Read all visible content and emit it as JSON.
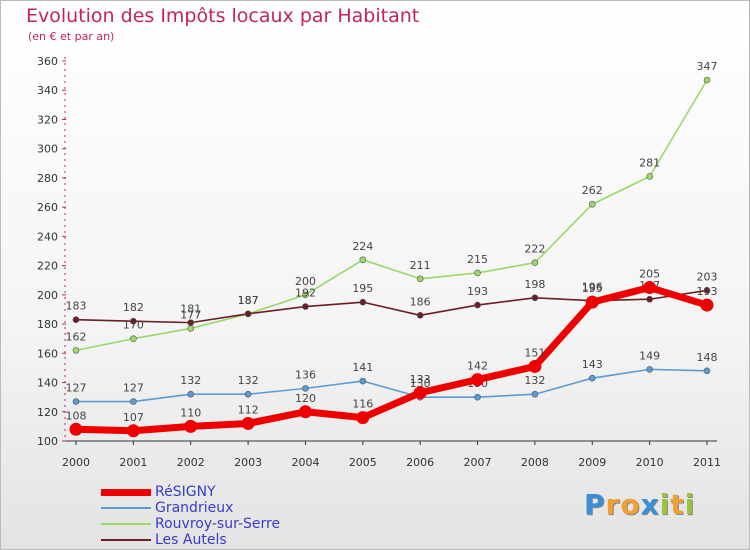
{
  "header": {
    "title": "Evolution des Impôts locaux par Habitant",
    "subtitle": "(en € et par an)"
  },
  "logo": {
    "letters": [
      {
        "ch": "P",
        "color": "#3a8fd6"
      },
      {
        "ch": "r",
        "color": "#f0a030"
      },
      {
        "ch": "o",
        "color": "#f0a030"
      },
      {
        "ch": "x",
        "color": "#3a8fd6"
      },
      {
        "ch": "i",
        "color": "#9ac43c"
      },
      {
        "ch": "t",
        "color": "#f0a030"
      },
      {
        "ch": "i",
        "color": "#9ac43c"
      }
    ]
  },
  "chart_data": {
    "type": "line",
    "title": "Evolution des Impôts locaux par Habitant",
    "subtitle": "(en € et par an)",
    "x": [
      "2000",
      "2001",
      "2002",
      "2003",
      "2004",
      "2005",
      "2006",
      "2007",
      "2008",
      "2009",
      "2010",
      "2011"
    ],
    "ylim": [
      100,
      360
    ],
    "yticks": [
      100,
      120,
      140,
      160,
      180,
      200,
      220,
      240,
      260,
      280,
      300,
      320,
      340,
      360
    ],
    "grid": false,
    "legend_position": "bottom-left",
    "series": [
      {
        "name": "RéSIGNY",
        "color": "#ee0000",
        "values": [
          108,
          107,
          110,
          112,
          120,
          116,
          133,
          142,
          151,
          195,
          205,
          193
        ]
      },
      {
        "name": "Grandrieux",
        "color": "#5b9bd5",
        "values": [
          127,
          127,
          132,
          132,
          136,
          141,
          130,
          130,
          132,
          143,
          149,
          148
        ]
      },
      {
        "name": "Rouvroy-sur-Serre",
        "color": "#99d86b",
        "values": [
          162,
          170,
          177,
          187,
          200,
          224,
          211,
          215,
          222,
          262,
          281,
          347
        ]
      },
      {
        "name": "Les Autels",
        "color": "#6b1f24",
        "values": [
          183,
          182,
          181,
          187,
          192,
          195,
          186,
          193,
          198,
          196,
          197,
          203
        ]
      }
    ]
  }
}
